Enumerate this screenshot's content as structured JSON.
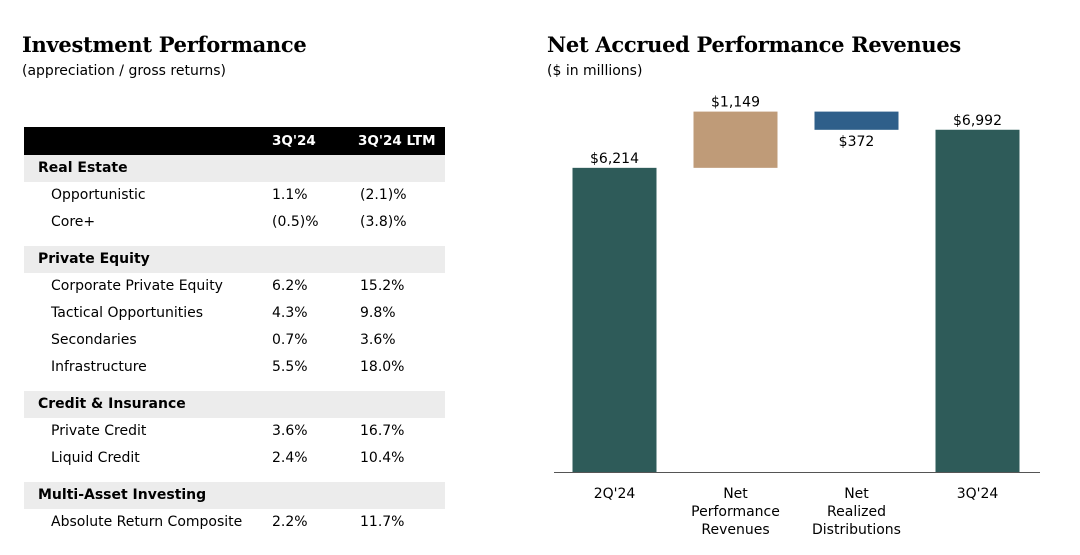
{
  "left_panel": {
    "title": "Investment Performance",
    "subtitle": "(appreciation / gross returns)",
    "table": {
      "columns": [
        "",
        "3Q'24",
        "3Q'24 LTM"
      ],
      "rows": [
        {
          "type": "section",
          "label": "Real Estate"
        },
        {
          "type": "item",
          "label": "Opportunistic",
          "q": "1.1%",
          "ltm": "(2.1)%"
        },
        {
          "type": "item",
          "label": "Core+",
          "q": "(0.5)%",
          "ltm": "(3.8)%"
        },
        {
          "type": "gap"
        },
        {
          "type": "section",
          "label": "Private Equity"
        },
        {
          "type": "item",
          "label": "Corporate Private Equity",
          "q": "6.2%",
          "ltm": "15.2%"
        },
        {
          "type": "item",
          "label": "Tactical Opportunities",
          "q": "4.3%",
          "ltm": "9.8%"
        },
        {
          "type": "item",
          "label": "Secondaries",
          "q": "0.7%",
          "ltm": "3.6%"
        },
        {
          "type": "item",
          "label": "Infrastructure",
          "q": "5.5%",
          "ltm": "18.0%"
        },
        {
          "type": "gap"
        },
        {
          "type": "section",
          "label": "Credit & Insurance"
        },
        {
          "type": "item",
          "label": "Private Credit",
          "q": "3.6%",
          "ltm": "16.7%"
        },
        {
          "type": "item",
          "label": "Liquid Credit",
          "q": "2.4%",
          "ltm": "10.4%"
        },
        {
          "type": "gap"
        },
        {
          "type": "section",
          "label": "Multi-Asset Investing"
        },
        {
          "type": "item",
          "label": "Absolute Return Composite",
          "q": "2.2%",
          "ltm": "11.7%"
        }
      ]
    }
  },
  "right_panel": {
    "title": "Net Accrued Performance Revenues",
    "subtitle": "($ in millions)"
  },
  "chart_data": {
    "type": "bar",
    "subtype": "waterfall",
    "categories": [
      "2Q'24",
      "Net Performance Revenues",
      "Net Realized Distributions",
      "3Q'24"
    ],
    "category_lines": [
      [
        "2Q'24"
      ],
      [
        "Net",
        "Performance",
        "Revenues"
      ],
      [
        "Net",
        "Realized",
        "Distributions"
      ],
      [
        "3Q'24"
      ]
    ],
    "values": [
      6214,
      1149,
      -372,
      6992
    ],
    "value_labels": [
      "$6,214",
      "$1,149",
      "$372",
      "$6,992"
    ],
    "bar_kinds": [
      "total",
      "increase",
      "decrease",
      "total"
    ],
    "colors": {
      "total": "#2e5b59",
      "increase": "#bf9b78",
      "decrease": "#2f5f8a"
    },
    "ylim": [
      0,
      7600
    ],
    "grid": false,
    "legend": "none"
  }
}
